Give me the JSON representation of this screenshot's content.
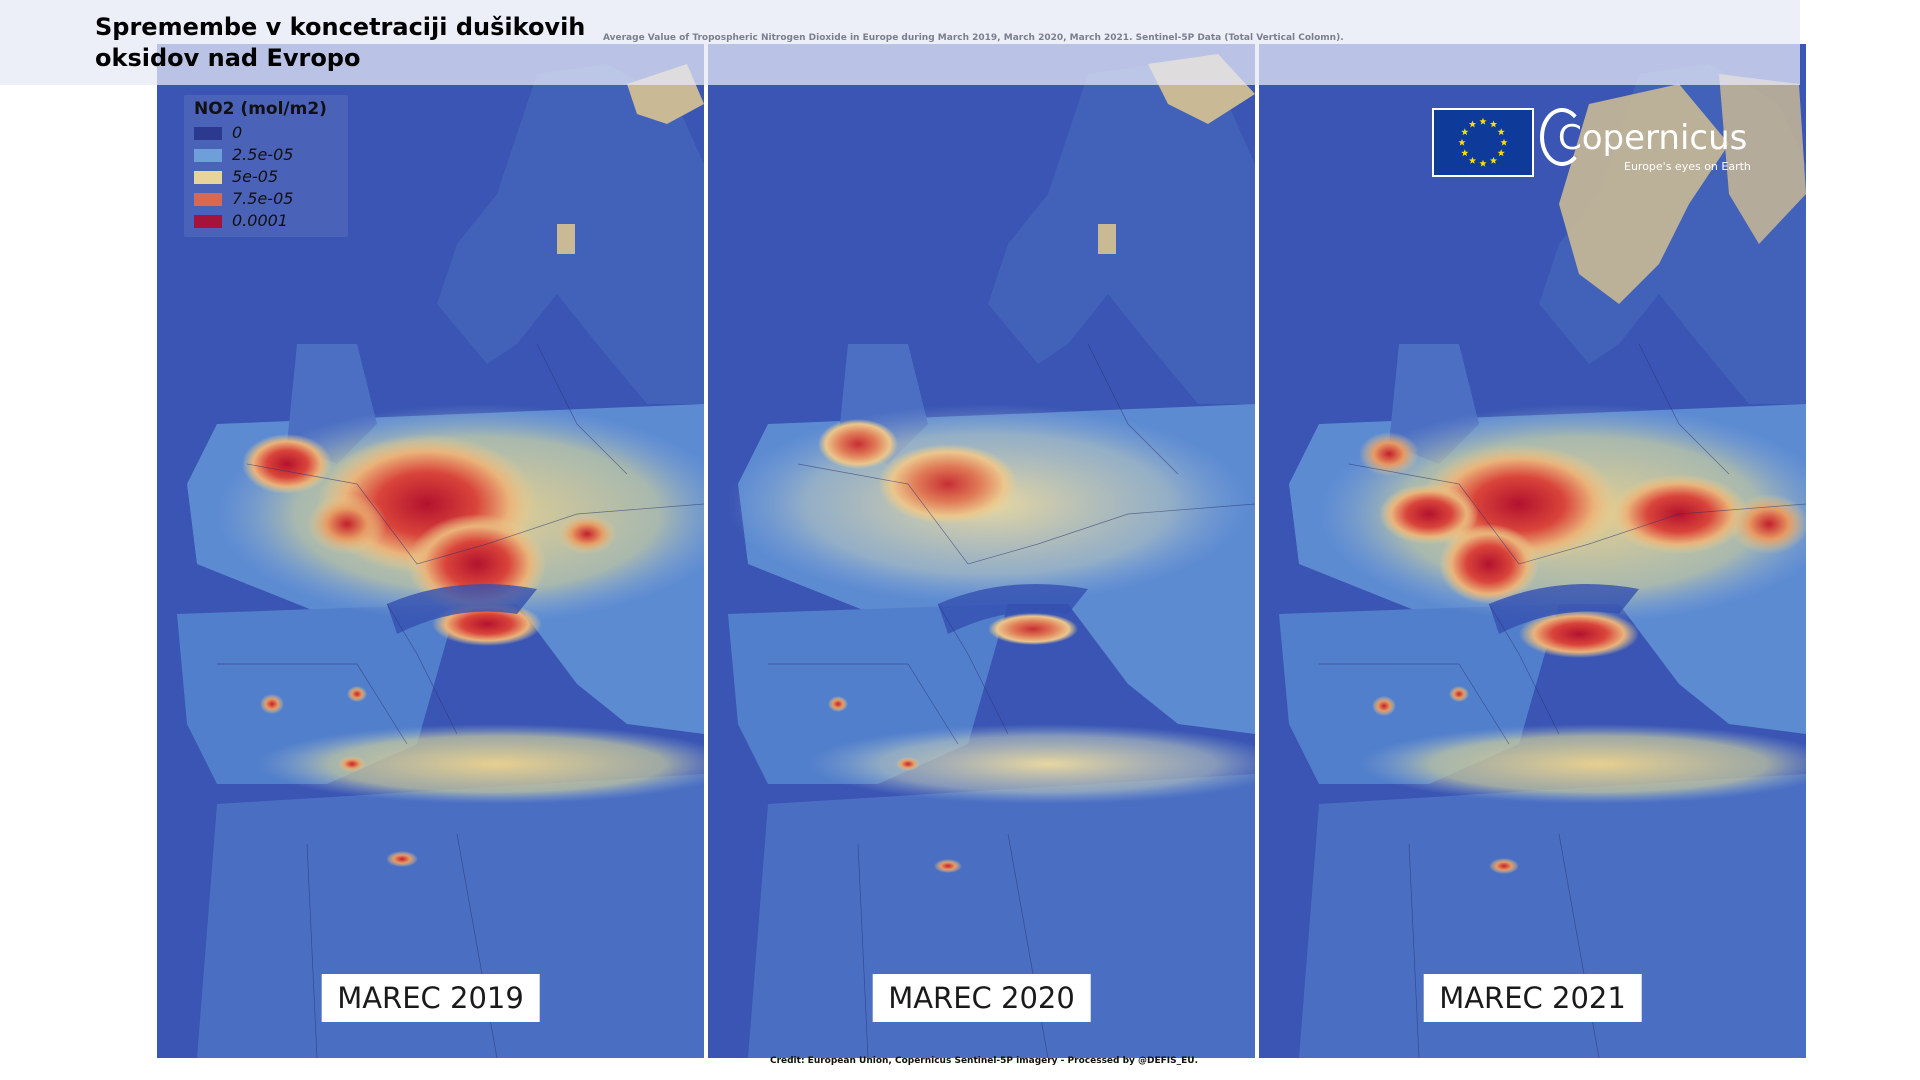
{
  "title": "Spremembe v koncetraciji dušikovih oksidov nad Evropo",
  "subtitle": "Average Value of Tropospheric Nitrogen Dioxide in Europe during March 2019, March 2020, March 2021.  Sentinel-5P Data (Total Vertical Colomn).",
  "legend": {
    "title": "NO2 (mol/m2)",
    "items": [
      {
        "label": "0",
        "color": "#2b3a8f"
      },
      {
        "label": "2.5e-05",
        "color": "#6f9fd8"
      },
      {
        "label": "5e-05",
        "color": "#e6d49a"
      },
      {
        "label": "7.5e-05",
        "color": "#d9684f"
      },
      {
        "label": "0.0001",
        "color": "#a3133a"
      }
    ]
  },
  "panels": [
    {
      "label": "MAREC 2019",
      "intensity": "high"
    },
    {
      "label": "MAREC 2020",
      "intensity": "low"
    },
    {
      "label": "MAREC 2021",
      "intensity": "high"
    }
  ],
  "logo": {
    "name": "Copernicus",
    "tagline": "Europe's eyes on Earth"
  },
  "credit": "Credit: European Union, Copernicus Sentinel-5P imagery - Processed by @DEFIS_EU.",
  "colors": {
    "sea": "#3650b0",
    "land_low": "#5b86cf",
    "land_mid": "#e8cf8f",
    "hot": "#c41f2b",
    "snow": "#c9b995"
  }
}
